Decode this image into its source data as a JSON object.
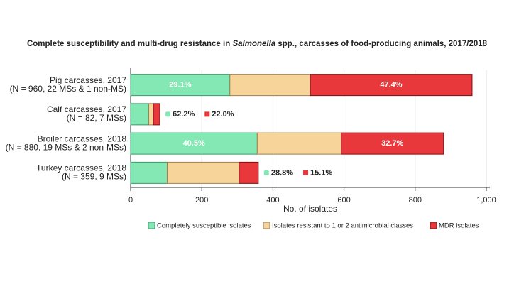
{
  "chart_data": {
    "type": "stacked-bar-horizontal",
    "title": [
      "Complete susceptibility and multi-drug resistance in ",
      "Salmonella",
      " spp., carcasses of food-producing animals, 2017/2018"
    ],
    "categories": [
      "Pig carcasses, 2017",
      "Calf carcasses, 2017",
      "Broiler carcasses, 2018",
      "Turkey carcasses, 2018"
    ],
    "category_details": [
      "(N = 960, 22 MSs & 1 non-MS)",
      "(N = 82, 7 MSs)",
      "(N = 880, 19 MSs & 2 non-MSs)",
      "(N = 359, 9 MSs)"
    ],
    "series": [
      {
        "name": "Completely susceptible isolates",
        "color": "#84e8b4",
        "values": [
          279,
          51,
          356,
          103
        ],
        "labels": [
          "29.1%",
          "62.2%",
          "40.5%",
          "28.8%"
        ]
      },
      {
        "name": "Isolates resistant to 1 or 2 antimicrobial classes",
        "color": "#f6d49a",
        "values": [
          226,
          13,
          236,
          202
        ]
      },
      {
        "name": "MDR isolates",
        "color": "#e8383c",
        "values": [
          455,
          18,
          288,
          54
        ],
        "labels": [
          "47.4%",
          "22.0%",
          "32.7%",
          "15.1%"
        ]
      }
    ],
    "xlabel": "No. of isolates",
    "xlim": [
      0,
      1010
    ],
    "xticks": [
      0,
      200,
      400,
      600,
      800,
      {
        "value": 1000,
        "label": "1,000"
      }
    ],
    "grid": true
  }
}
